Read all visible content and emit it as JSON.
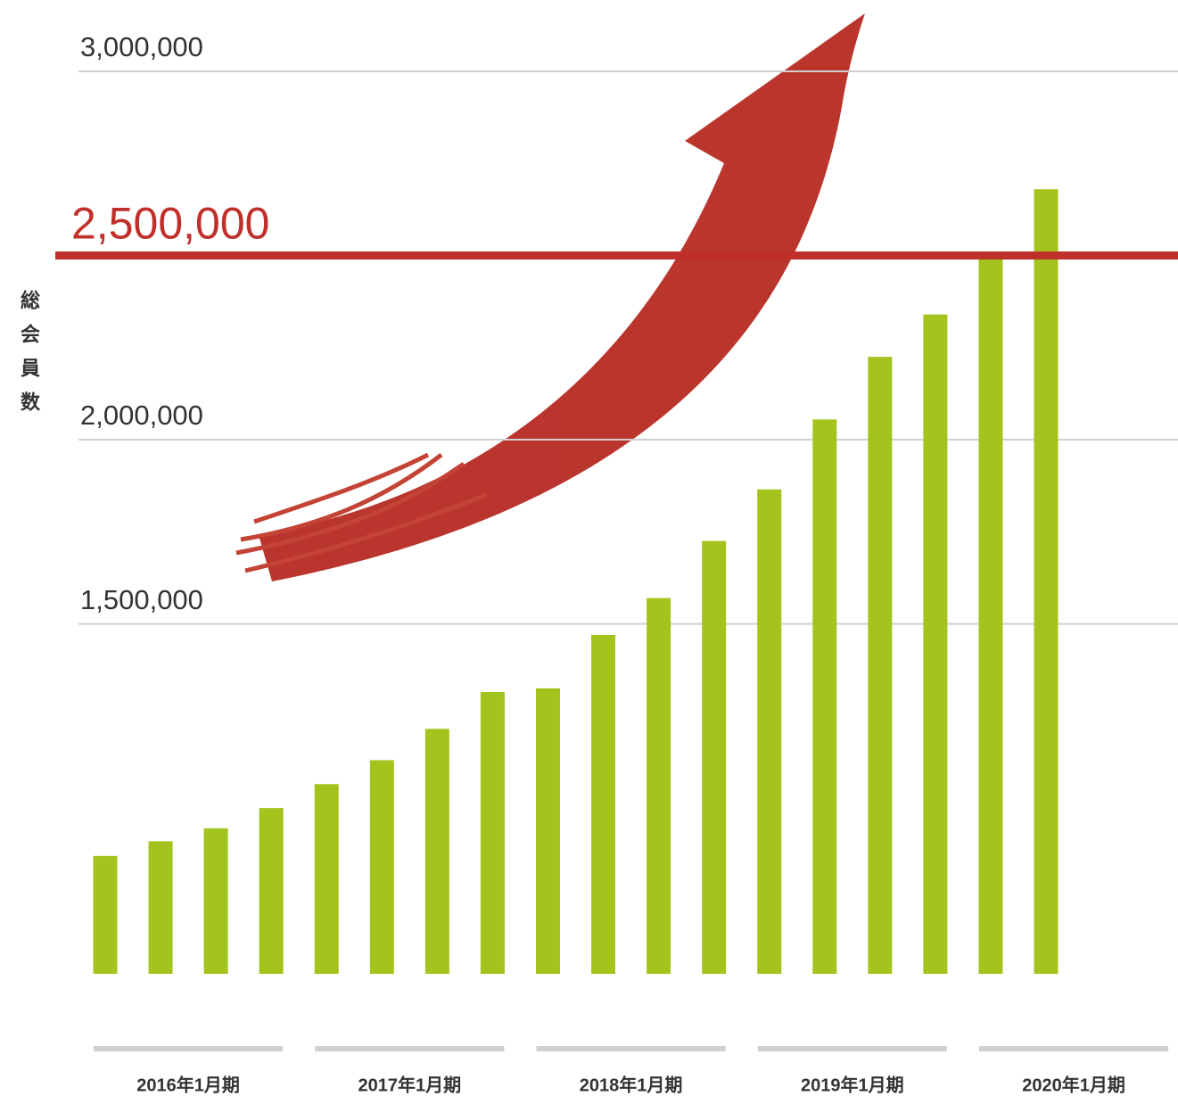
{
  "chart_data": {
    "type": "bar",
    "y_label": "総会員数",
    "categories": [
      "2016年1月期",
      null,
      null,
      null,
      "2017年1月期",
      null,
      null,
      null,
      "2018年1月期",
      null,
      null,
      null,
      "2019年1月期",
      null,
      null,
      null,
      "2020年1月期",
      null
    ],
    "values": [
      870000,
      910000,
      945000,
      1000000,
      1065000,
      1130000,
      1215000,
      1315000,
      1325000,
      1470000,
      1570000,
      1725000,
      1865000,
      2055000,
      2225000,
      2340000,
      2490000,
      2680000
    ],
    "color": "#a3c41c",
    "ylim": [
      550000,
      3000000
    ],
    "yticks": [
      {
        "value": 1500000,
        "label": "1,500,000"
      },
      {
        "value": 2000000,
        "label": "2,000,000"
      },
      {
        "value": 3000000,
        "label": "3,000,000"
      }
    ],
    "grid": true,
    "reference_line": {
      "value": 2500000,
      "label": "2,500,000",
      "color": "#c0302a"
    }
  }
}
